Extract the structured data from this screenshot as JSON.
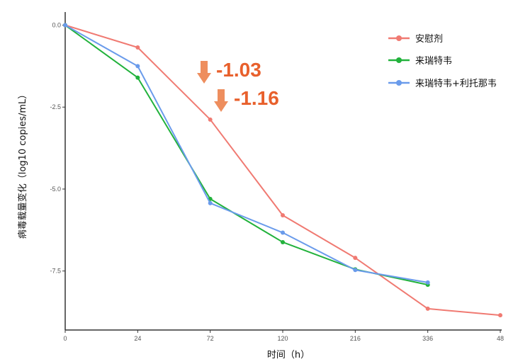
{
  "chart_data": {
    "type": "line",
    "x": [
      "0",
      "24",
      "72",
      "120",
      "216",
      "336",
      "48"
    ],
    "xlabel": "时间（h）",
    "ylabel": "病毒载量变化（log10 copies/mL）",
    "yticks": [
      "0.0",
      "-2.5",
      "-5.0",
      "-7.5"
    ],
    "ylim": [
      -9.3,
      0.4
    ],
    "grid": false,
    "legend_position": "top-right",
    "series": [
      {
        "name": "安慰剂",
        "color": "#F07A72",
        "values": [
          0.0,
          -0.68,
          -2.88,
          -5.8,
          -7.1,
          -8.65,
          -8.85
        ]
      },
      {
        "name": "来瑞特韦",
        "color": "#22B23C",
        "values": [
          0.0,
          -1.6,
          -5.3,
          -6.62,
          -7.45,
          -7.92,
          null
        ]
      },
      {
        "name": "来瑞特韦+利托那韦",
        "color": "#6A9BEB",
        "values": [
          0.0,
          -1.25,
          -5.43,
          -6.33,
          -7.47,
          -7.85,
          null
        ]
      }
    ],
    "annotations": [
      {
        "text": "-1.03",
        "color": "#E8602C"
      },
      {
        "text": "-1.16",
        "color": "#E8602C"
      }
    ]
  }
}
